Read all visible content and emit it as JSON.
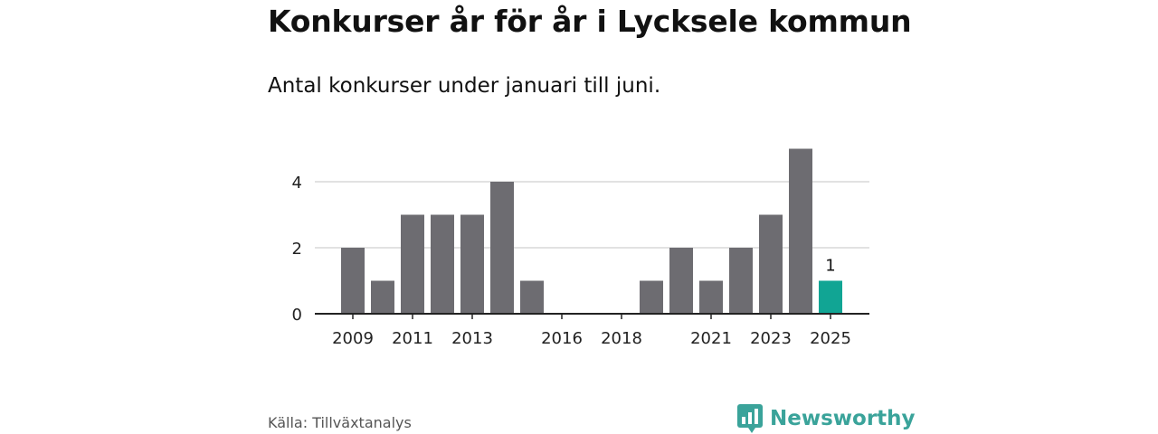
{
  "header": {
    "title": "Konkurser år för år i Lycksele kommun",
    "subtitle": "Antal konkurser under januari till juni."
  },
  "footer": {
    "source": "Källa: Tillväxtanalys",
    "brand": "Newsworthy",
    "brand_icon": "bar-chart-logo-icon"
  },
  "colors": {
    "bar": "#6d6c71",
    "highlight": "#11a594",
    "grid": "#d9d9d9",
    "axis": "#222222",
    "brand": "#3aa39a"
  },
  "chart_data": {
    "type": "bar",
    "title": "Konkurser år för år i Lycksele kommun",
    "subtitle": "Antal konkurser under januari till juni.",
    "categories": [
      2009,
      2010,
      2011,
      2012,
      2013,
      2014,
      2015,
      2016,
      2017,
      2018,
      2019,
      2020,
      2021,
      2022,
      2023,
      2024,
      2025
    ],
    "values": [
      2,
      1,
      3,
      3,
      3,
      4,
      1,
      0,
      0,
      0,
      1,
      2,
      1,
      2,
      3,
      5,
      1
    ],
    "x_tick_labels": [
      "2009",
      "2011",
      "2013",
      "2016",
      "2018",
      "2021",
      "2023",
      "2025"
    ],
    "y_ticks": [
      0,
      2,
      4
    ],
    "ylim": [
      0,
      5
    ],
    "highlight_category": 2025,
    "data_labels": [
      {
        "category": 2025,
        "text": "1"
      }
    ],
    "grid": true
  }
}
